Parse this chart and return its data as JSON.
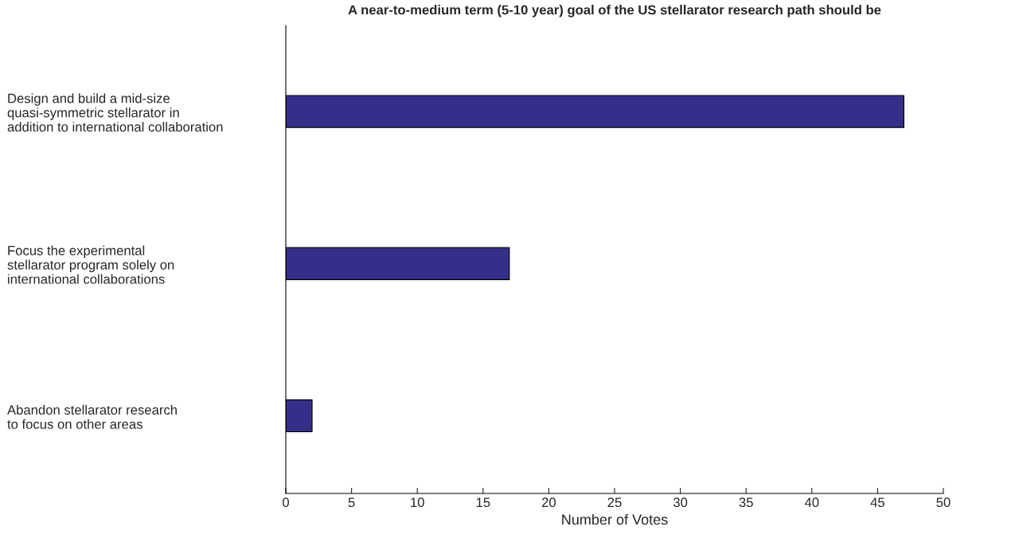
{
  "chart_data": {
    "type": "bar",
    "orientation": "horizontal",
    "title": "A near-to-medium term (5-10 year) goal of the US stellarator research path should be",
    "xlabel": "Number of Votes",
    "categories": [
      "Design and build a mid-size\nquasi-symmetric stellarator in\naddition to international collaboration",
      "Focus the experimental\nstellarator program solely on\ninternational collaborations",
      "Abandon stellarator research\nto focus on other areas"
    ],
    "values": [
      47,
      17,
      2
    ],
    "color": "#352f8a",
    "xlim": [
      0,
      50
    ],
    "xticks": [
      0,
      5,
      10,
      15,
      20,
      25,
      30,
      35,
      40,
      45,
      50
    ]
  }
}
